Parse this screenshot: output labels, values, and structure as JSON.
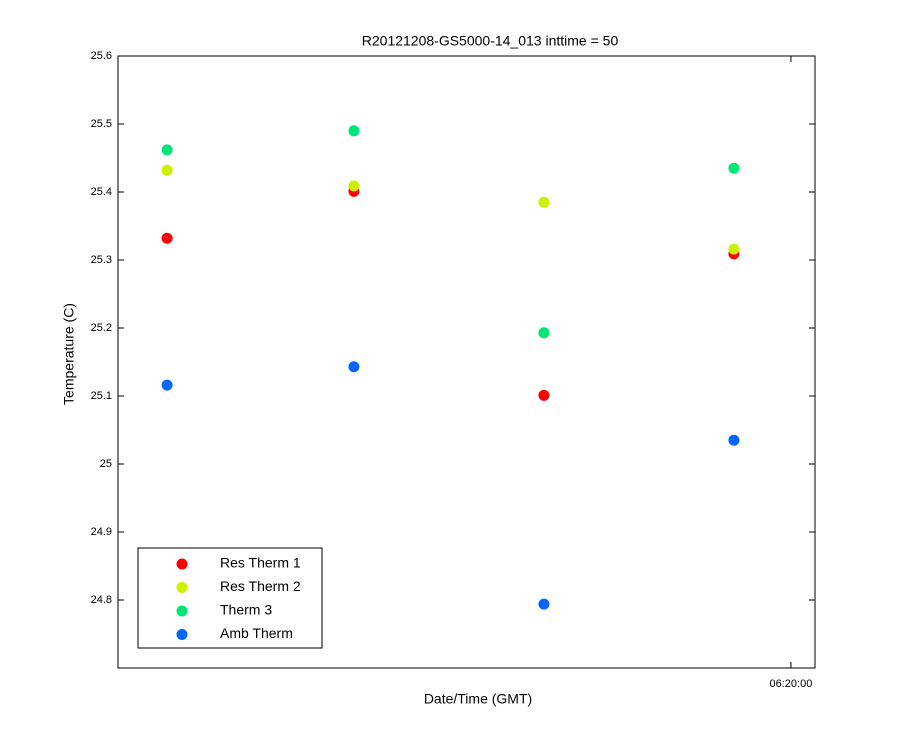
{
  "chart_data": {
    "type": "scatter",
    "title": "R20121208-GS5000-14_013 inttime = 50",
    "x_label": "Date/Time (GMT)",
    "y_label": "Temperature (C)",
    "x": [
      22603,
      22662,
      22722,
      22782
    ],
    "xlim": [
      22587.5,
      22807.6
    ],
    "xticks": [
      {
        "value": 22800,
        "label": "06:20:00"
      }
    ],
    "ylim": [
      24.7,
      25.6
    ],
    "yticks": [
      24.8,
      24.9,
      25,
      25.1,
      25.2,
      25.3,
      25.4,
      25.5,
      25.6
    ],
    "grid": false,
    "legend_position": "lower-left",
    "series": [
      {
        "name": "Res Therm 1",
        "color": "#ff0000",
        "values": [
          25.332,
          25.401,
          25.101,
          25.309
        ]
      },
      {
        "name": "Res Therm 2",
        "color": "#ccf000",
        "values": [
          25.432,
          25.409,
          25.385,
          25.316
        ]
      },
      {
        "name": "Therm 3",
        "color": "#00e676",
        "values": [
          25.462,
          25.49,
          25.193,
          25.435
        ]
      },
      {
        "name": "Amb Therm",
        "color": "#0066ff",
        "values": [
          25.116,
          25.143,
          24.794,
          25.035
        ]
      }
    ]
  }
}
